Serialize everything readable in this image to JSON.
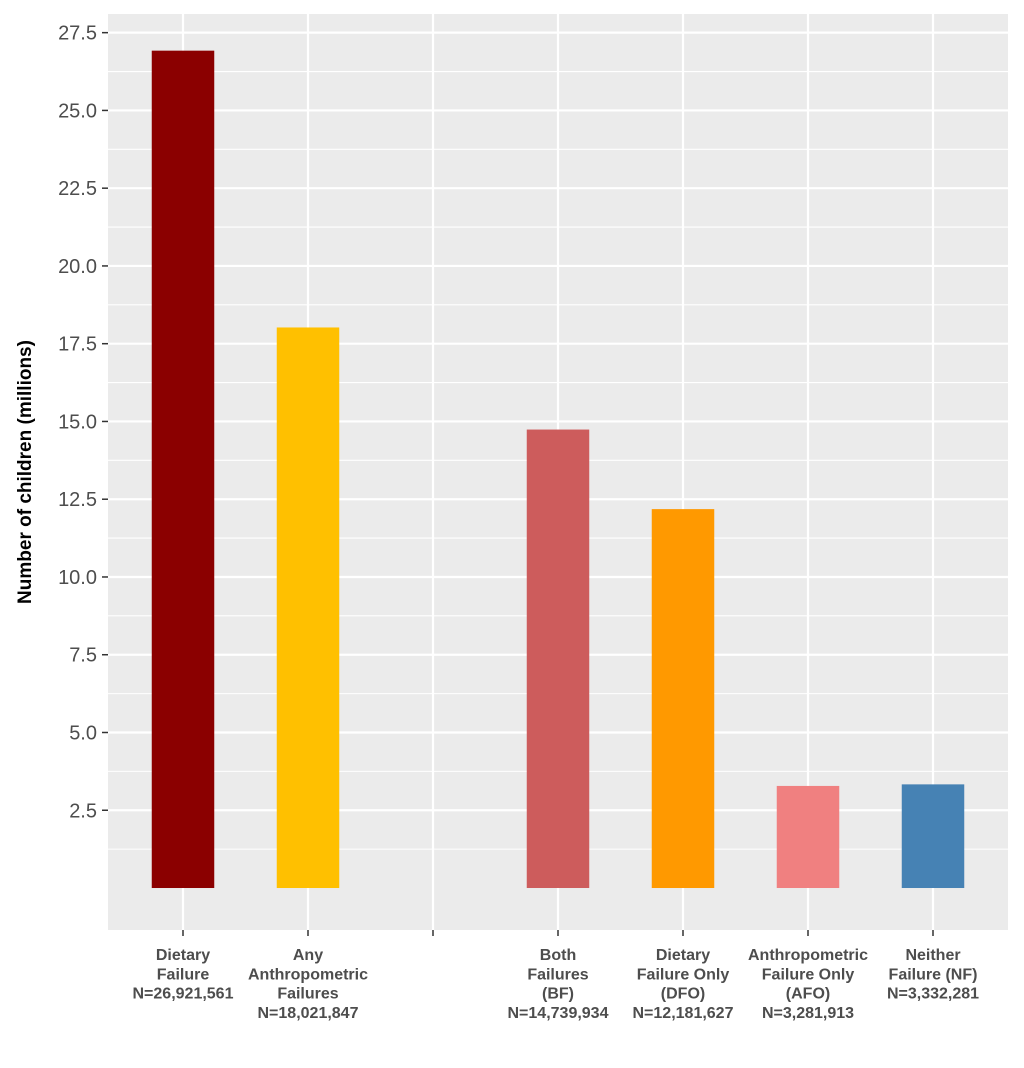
{
  "chart_data": {
    "type": "bar",
    "title": "",
    "xlabel": "",
    "ylabel": "Number of children (millions)",
    "ylim": [
      -1.35,
      28.1
    ],
    "yticks": [
      2.5,
      5.0,
      7.5,
      10.0,
      12.5,
      15.0,
      17.5,
      20.0,
      22.5,
      25.0,
      27.5
    ],
    "ytick_labels": [
      "2.5",
      "5.0",
      "7.5",
      "10.0",
      "12.5",
      "15.0",
      "17.5",
      "20.0",
      "22.5",
      "25.0",
      "27.5"
    ],
    "grid": true,
    "legend": "none",
    "categories": [
      {
        "label_lines": [
          "Dietary",
          "Failure",
          "N=26,921,561"
        ],
        "value": 26.921561,
        "color": "#8B0000"
      },
      {
        "label_lines": [
          "Any",
          "Anthropometric",
          "Failures",
          "N=18,021,847"
        ],
        "value": 18.021847,
        "color": "#FFC000"
      },
      {
        "label_lines": [],
        "value": null,
        "color": null
      },
      {
        "label_lines": [
          "Both",
          "Failures",
          "(BF)",
          "N=14,739,934"
        ],
        "value": 14.739934,
        "color": "#CD5C5C"
      },
      {
        "label_lines": [
          "Dietary",
          "Failure Only",
          "(DFO)",
          "N=12,181,627"
        ],
        "value": 12.181627,
        "color": "#FF9900"
      },
      {
        "label_lines": [
          "Anthropometric",
          "Failure Only",
          "(AFO)",
          "N=3,281,913"
        ],
        "value": 3.281913,
        "color": "#F08080"
      },
      {
        "label_lines": [
          "Neither",
          "Failure (NF)",
          "N=3,332,281"
        ],
        "value": 3.332281,
        "color": "#4682B4"
      }
    ]
  }
}
